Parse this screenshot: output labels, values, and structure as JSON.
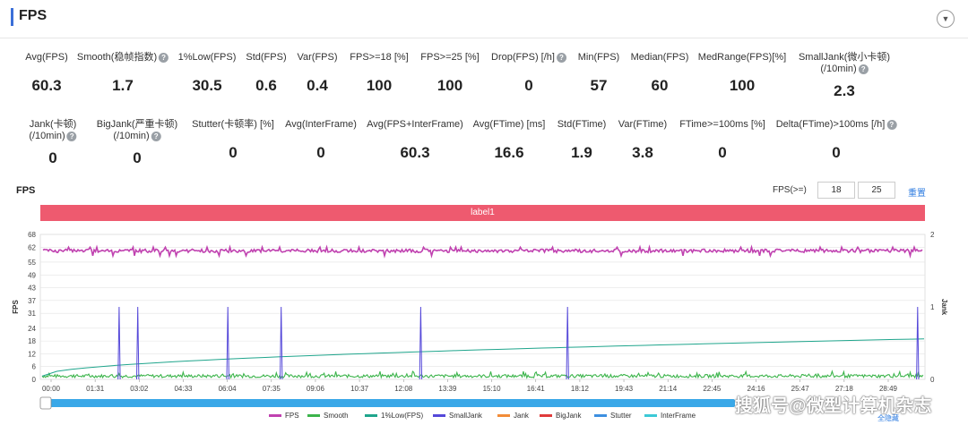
{
  "header": {
    "title": "FPS"
  },
  "metrics_row1": [
    {
      "label": "Avg(FPS)",
      "value": "60.3",
      "help": false
    },
    {
      "label": "Smooth(稳帧指数)",
      "value": "1.7",
      "help": true
    },
    {
      "label": "1%Low(FPS)",
      "value": "30.5",
      "help": false
    },
    {
      "label": "Std(FPS)",
      "value": "0.6",
      "help": false
    },
    {
      "label": "Var(FPS)",
      "value": "0.4",
      "help": false
    },
    {
      "label": "FPS>=18 [%]",
      "value": "100",
      "help": false
    },
    {
      "label": "FPS>=25 [%]",
      "value": "100",
      "help": false
    },
    {
      "label": "Drop(FPS) [/h]",
      "value": "0",
      "help": true
    },
    {
      "label": "Min(FPS)",
      "value": "57",
      "help": false
    },
    {
      "label": "Median(FPS)",
      "value": "60",
      "help": false
    },
    {
      "label": "MedRange(FPS)[%]",
      "value": "100",
      "help": false
    },
    {
      "label": "SmallJank(微小卡顿)",
      "label2": "(/10min)",
      "value": "2.3",
      "help": true
    }
  ],
  "metrics_row2": [
    {
      "label": "Jank(卡顿)",
      "label2": "(/10min)",
      "value": "0",
      "help": true
    },
    {
      "label": "BigJank(严重卡顿)",
      "label2": "(/10min)",
      "value": "0",
      "help": true
    },
    {
      "label": "Stutter(卡顿率) [%]",
      "value": "0",
      "help": false
    },
    {
      "label": "Avg(InterFrame)",
      "value": "0",
      "help": false
    },
    {
      "label": "Avg(FPS+InterFrame)",
      "value": "60.3",
      "help": false
    },
    {
      "label": "Avg(FTime) [ms]",
      "value": "16.6",
      "help": false
    },
    {
      "label": "Std(FTime)",
      "value": "1.9",
      "help": false
    },
    {
      "label": "Var(FTime)",
      "value": "3.8",
      "help": false
    },
    {
      "label": "FTime>=100ms [%]",
      "value": "0",
      "help": false
    },
    {
      "label": "Delta(FTime)>100ms [/h]",
      "value": "0",
      "help": true
    }
  ],
  "chart_header": {
    "title": "FPS",
    "threshold_label": "FPS(>=)",
    "threshold_1": "18",
    "threshold_2": "25",
    "reset_label": "重置"
  },
  "label_band": "label1",
  "full_label": "全隐藏",
  "watermark": "搜狐号@微型计算机杂志",
  "chart_data": {
    "type": "line",
    "x_tick_labels": [
      "00:00",
      "01:31",
      "03:02",
      "04:33",
      "06:04",
      "07:35",
      "09:06",
      "10:37",
      "12:08",
      "13:39",
      "15:10",
      "16:41",
      "18:12",
      "19:43",
      "21:14",
      "22:45",
      "24:16",
      "25:47",
      "27:18",
      "28:49"
    ],
    "duration_seconds": 1800,
    "ylabel": "FPS",
    "y2label": "Jank",
    "yticks": [
      0,
      6,
      12,
      18,
      24,
      31,
      37,
      43,
      49,
      55,
      62,
      68
    ],
    "ylim": [
      0,
      68
    ],
    "y2ticks": [
      0,
      1,
      2
    ],
    "y2lim": [
      0,
      2
    ],
    "series": [
      {
        "name": "FPS",
        "color": "#c042b0",
        "axis": "left",
        "mean": 60.3,
        "min": 57,
        "max": 62
      },
      {
        "name": "Smooth",
        "color": "#3cb44b",
        "axis": "left",
        "mean": 1.7
      },
      {
        "name": "1%Low(FPS)",
        "color": "#1fa58c",
        "axis": "left",
        "start": 1.5,
        "end": 19
      },
      {
        "name": "SmallJank",
        "color": "#5548d9",
        "axis": "right",
        "events_seconds": [
          139,
          177,
          361,
          470,
          755,
          1055,
          1770
        ],
        "event_value": 1
      },
      {
        "name": "Jank",
        "color": "#f28c38",
        "axis": "right",
        "events_seconds": []
      },
      {
        "name": "BigJank",
        "color": "#e03b3b",
        "axis": "right",
        "events_seconds": []
      },
      {
        "name": "Stutter",
        "color": "#3d8fe0",
        "axis": "right",
        "events_seconds": []
      },
      {
        "name": "InterFrame",
        "color": "#3cc9d6",
        "axis": "left",
        "events_seconds": []
      }
    ]
  }
}
